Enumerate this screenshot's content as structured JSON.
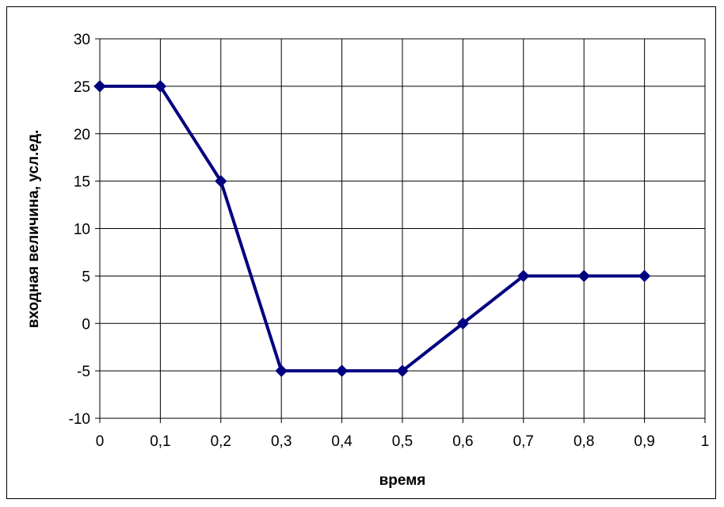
{
  "chart_data": {
    "type": "line",
    "title": "",
    "xlabel": "время",
    "ylabel": "входная величина, усл.ед.",
    "xlim": [
      0,
      1
    ],
    "ylim": [
      -10,
      30
    ],
    "x_ticks": [
      0,
      0.1,
      0.2,
      0.3,
      0.4,
      0.5,
      0.6,
      0.7,
      0.8,
      0.9,
      1
    ],
    "x_tick_labels": [
      "0",
      "0,1",
      "0,2",
      "0,3",
      "0,4",
      "0,5",
      "0,6",
      "0,7",
      "0,8",
      "0,9",
      "1"
    ],
    "y_ticks": [
      -10,
      -5,
      0,
      5,
      10,
      15,
      20,
      25,
      30
    ],
    "y_tick_labels": [
      "-10",
      "-5",
      "0",
      "5",
      "10",
      "15",
      "20",
      "25",
      "30"
    ],
    "grid": true,
    "legend": "none",
    "series": [
      {
        "color": "#000080",
        "marker": "diamond",
        "x": [
          0,
          0.1,
          0.2,
          0.3,
          0.4,
          0.5,
          0.6,
          0.7,
          0.8,
          0.9
        ],
        "y": [
          25,
          25,
          15,
          -5,
          -5,
          -5,
          0,
          5,
          5,
          5
        ]
      }
    ]
  }
}
